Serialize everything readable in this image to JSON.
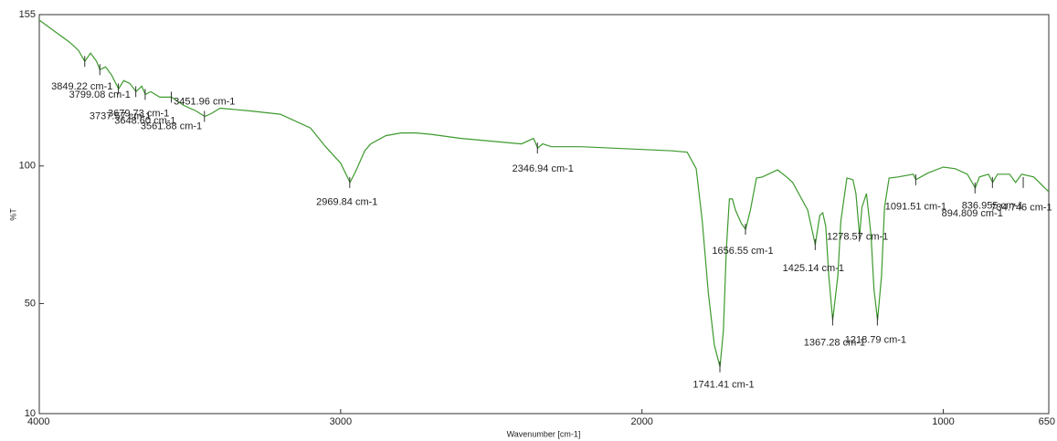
{
  "chart_data": {
    "type": "line",
    "xlabel": "Wavenumber [cm-1]",
    "ylabel": "%T",
    "xlim": [
      4000,
      650
    ],
    "ylim": [
      10,
      155
    ],
    "xticks": [
      4000,
      3000,
      2000,
      1000,
      650
    ],
    "yticks": [
      10,
      50,
      100,
      155
    ],
    "color": "#3c9a2c",
    "x": [
      4000,
      3950,
      3900,
      3870,
      3849,
      3830,
      3810,
      3799,
      3780,
      3760,
      3737,
      3720,
      3700,
      3679,
      3660,
      3648,
      3630,
      3600,
      3561,
      3520,
      3480,
      3451,
      3430,
      3400,
      3300,
      3200,
      3100,
      3050,
      3000,
      2969,
      2950,
      2920,
      2900,
      2850,
      2800,
      2750,
      2700,
      2600,
      2500,
      2400,
      2360,
      2346,
      2330,
      2300,
      2200,
      2100,
      2000,
      1900,
      1850,
      1820,
      1800,
      1780,
      1760,
      1741,
      1730,
      1720,
      1710,
      1700,
      1690,
      1670,
      1656,
      1640,
      1620,
      1600,
      1550,
      1520,
      1500,
      1480,
      1450,
      1425,
      1410,
      1400,
      1390,
      1380,
      1367,
      1350,
      1340,
      1320,
      1300,
      1290,
      1278,
      1270,
      1255,
      1240,
      1230,
      1218,
      1205,
      1195,
      1180,
      1150,
      1100,
      1091,
      1050,
      1000,
      960,
      920,
      894,
      880,
      850,
      836,
      820,
      780,
      760,
      740,
      700,
      650
    ],
    "values": [
      153,
      149,
      145,
      142,
      138,
      141,
      138,
      135,
      136,
      133,
      128,
      131,
      130,
      127,
      129,
      126,
      127,
      125,
      125,
      122,
      120,
      118,
      119,
      121,
      120,
      118.8,
      113.8,
      107,
      101,
      94,
      98,
      105.5,
      108,
      111,
      112,
      112,
      111.5,
      110,
      109,
      108,
      110,
      106.5,
      108,
      107,
      107,
      106.5,
      106,
      105.5,
      105,
      99,
      80,
      54,
      35,
      27,
      40,
      70,
      88,
      88,
      84,
      79,
      77,
      84,
      95.6,
      96,
      98.6,
      96,
      94,
      90,
      84,
      71.4,
      82,
      83,
      78,
      60,
      44,
      60,
      80,
      95.6,
      95,
      90,
      74.5,
      85,
      90,
      75,
      55,
      44,
      60,
      85,
      95.6,
      96,
      97,
      95,
      97.5,
      99.6,
      99,
      97,
      92,
      96,
      97,
      94,
      97,
      97,
      94,
      97,
      96,
      90.6
    ],
    "annotations": [
      {
        "label": "3849.22 cm-1",
        "x": 3849.22,
        "y": 138
      },
      {
        "label": "3799.08 cm-1",
        "x": 3799.08,
        "y": 135
      },
      {
        "label": "3737.57 cm-1",
        "x": 3737.57,
        "y": 128
      },
      {
        "label": "3679.73 cm-1",
        "x": 3679.73,
        "y": 127
      },
      {
        "label": "3648.60 cm-1",
        "x": 3648.6,
        "y": 126
      },
      {
        "label": "3561.88 cm-1",
        "x": 3561.88,
        "y": 125
      },
      {
        "label": "3451.96 cm-1",
        "x": 3451.96,
        "y": 118
      },
      {
        "label": "2969.84 cm-1",
        "x": 2969.84,
        "y": 94
      },
      {
        "label": "2346.94 cm-1",
        "x": 2346.94,
        "y": 106.5
      },
      {
        "label": "1741.41 cm-1",
        "x": 1741.41,
        "y": 27
      },
      {
        "label": "1656.55 cm-1",
        "x": 1656.55,
        "y": 77
      },
      {
        "label": "1425.14 cm-1",
        "x": 1425.14,
        "y": 71.4
      },
      {
        "label": "1367.28 cm-1",
        "x": 1367.28,
        "y": 44
      },
      {
        "label": "1278.57 cm-1",
        "x": 1278.57,
        "y": 74.5
      },
      {
        "label": "1218.79 cm-1",
        "x": 1218.79,
        "y": 44
      },
      {
        "label": "1091.51 cm-1",
        "x": 1091.51,
        "y": 95
      },
      {
        "label": "894.809 cm-1",
        "x": 894.809,
        "y": 92
      },
      {
        "label": "836.955 cm-1",
        "x": 836.955,
        "y": 94
      },
      {
        "label": "734.746 cm-1",
        "x": 734.746,
        "y": 94
      }
    ]
  }
}
